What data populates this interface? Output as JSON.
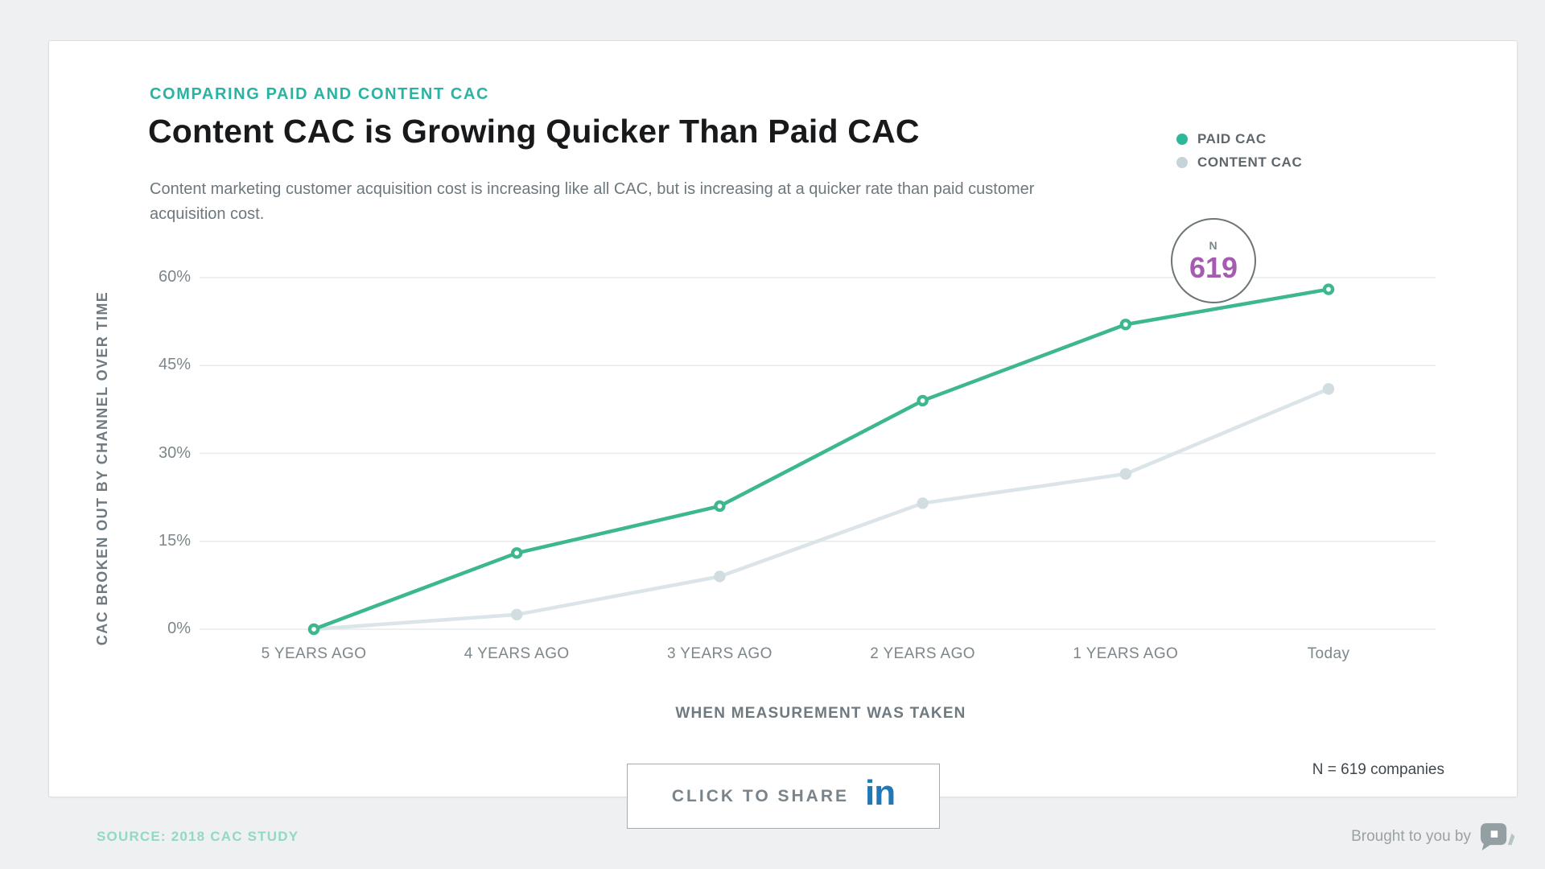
{
  "header": {
    "eyebrow": "COMPARING PAID AND CONTENT CAC",
    "title": "Content CAC is Growing Quicker Than Paid CAC",
    "subtitle": "Content marketing customer acquisition cost is increasing like all CAC, but is increasing at a quicker rate than paid customer acquisition cost."
  },
  "chart_data": {
    "type": "line",
    "categories": [
      "5 YEARS AGO",
      "4 YEARS AGO",
      "3 YEARS AGO",
      "2 YEARS AGO",
      "1 YEARS AGO",
      "Today"
    ],
    "series": [
      {
        "name": "PAID CAC",
        "color": "#3cb790",
        "legend_color": "#2fb898",
        "marker": "donut",
        "values": [
          0,
          13,
          21,
          39,
          52,
          58
        ]
      },
      {
        "name": "CONTENT CAC",
        "color": "#dbe4e8",
        "legend_color": "#c6d4da",
        "marker": "solid",
        "values": [
          0,
          2.5,
          9,
          21.5,
          26.5,
          41
        ]
      }
    ],
    "ytick_values": [
      0,
      15,
      30,
      45,
      60
    ],
    "ytick_labels": [
      "0%",
      "15%",
      "30%",
      "45%",
      "60%"
    ],
    "ylim": [
      0,
      62
    ],
    "xlabel": "WHEN MEASUREMENT WAS TAKEN",
    "ylabel": "CAC BROKEN OUT BY CHANNEL OVER TIME",
    "grid": true,
    "legend_position": "top-right"
  },
  "annotation": {
    "n_label": "N",
    "n_value": "619"
  },
  "footnote": "N = 619 companies",
  "share": {
    "label": "CLICK TO SHARE",
    "icon": "in"
  },
  "footer": {
    "source": "SOURCE: 2018 CAC STUDY",
    "brought_by": "Brought to you by"
  },
  "colors": {
    "accent_teal": "#28b3a2",
    "paid_line": "#3cb790",
    "content_line": "#dbe4e8",
    "n_purple": "#a55cb0",
    "linkedin_blue": "#2178b5",
    "background": "#eef0f1"
  }
}
